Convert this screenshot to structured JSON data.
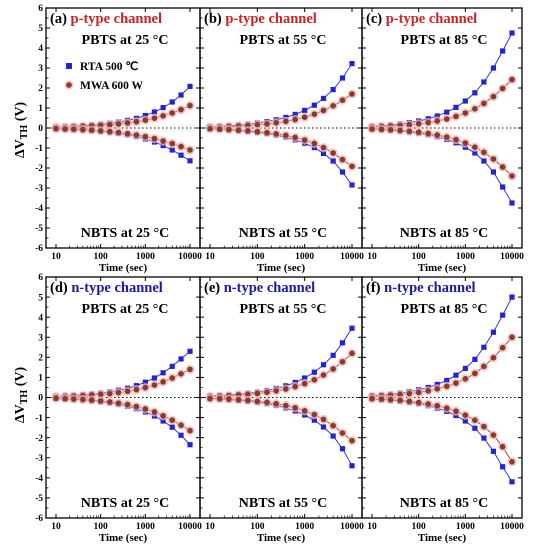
{
  "figure": {
    "y_axis_label": "ΔV",
    "y_axis_subscript": "TH",
    "y_axis_unit": " (V)"
  },
  "colors": {
    "rta": "#2323d6",
    "mwa": "#8b3a2a",
    "mwa_halo": "#f2b6b6",
    "p_channel": "#cc2222",
    "n_channel": "#1a1aa6"
  },
  "legend": {
    "rta_label": "RTA 500 ℃",
    "mwa_label": "MWA 600 W"
  },
  "chart_data": [
    {
      "type": "scatter",
      "panel": "(a)",
      "channel": "p-type channel",
      "top_label": "PBTS at 25 °C",
      "bottom_label": "NBTS at 25 °C",
      "xlabel": "Time (sec)",
      "x_scale": "log",
      "x_ticks": [
        "10",
        "100",
        "1000",
        "10000"
      ],
      "ylim": [
        -6,
        6
      ],
      "y_ticks": [
        6,
        5,
        4,
        3,
        2,
        1,
        0,
        -1,
        -2,
        -3,
        -4,
        -5,
        -6
      ],
      "x": [
        10,
        16,
        25,
        40,
        63,
        100,
        160,
        250,
        400,
        630,
        1000,
        1600,
        2500,
        4000,
        6300,
        10000
      ],
      "series": [
        {
          "name": "RTA 500 ℃",
          "stress": "PBTS",
          "values": [
            0.05,
            0.07,
            0.09,
            0.12,
            0.15,
            0.19,
            0.24,
            0.3,
            0.38,
            0.48,
            0.62,
            0.8,
            1.02,
            1.3,
            1.65,
            2.08
          ]
        },
        {
          "name": "MWA 600 W",
          "stress": "PBTS",
          "values": [
            0.03,
            0.04,
            0.06,
            0.08,
            0.1,
            0.13,
            0.16,
            0.2,
            0.25,
            0.31,
            0.39,
            0.49,
            0.61,
            0.75,
            0.92,
            1.12
          ]
        },
        {
          "name": "RTA 500 ℃",
          "stress": "NBTS",
          "values": [
            -0.04,
            -0.06,
            -0.08,
            -0.1,
            -0.13,
            -0.17,
            -0.21,
            -0.27,
            -0.34,
            -0.43,
            -0.55,
            -0.7,
            -0.88,
            -1.1,
            -1.36,
            -1.64
          ]
        },
        {
          "name": "MWA 600 W",
          "stress": "NBTS",
          "values": [
            -0.03,
            -0.05,
            -0.06,
            -0.08,
            -0.11,
            -0.14,
            -0.18,
            -0.22,
            -0.28,
            -0.35,
            -0.43,
            -0.53,
            -0.65,
            -0.78,
            -0.93,
            -1.1
          ]
        }
      ]
    },
    {
      "type": "scatter",
      "panel": "(b)",
      "channel": "p-type channel",
      "top_label": "PBTS at 55 °C",
      "bottom_label": "NBTS at 55 °C",
      "xlabel": "Time (sec)",
      "x_scale": "log",
      "x_ticks": [
        "10",
        "100",
        "1000",
        "10000"
      ],
      "ylim": [
        -6,
        6
      ],
      "x": [
        10,
        16,
        25,
        40,
        63,
        100,
        160,
        250,
        400,
        630,
        1000,
        1600,
        2500,
        4000,
        6300,
        10000
      ],
      "series": [
        {
          "name": "RTA 500 ℃",
          "stress": "PBTS",
          "values": [
            0.06,
            0.08,
            0.11,
            0.15,
            0.19,
            0.25,
            0.32,
            0.41,
            0.53,
            0.68,
            0.88,
            1.14,
            1.48,
            1.92,
            2.5,
            3.22
          ]
        },
        {
          "name": "MWA 600 W",
          "stress": "PBTS",
          "values": [
            0.04,
            0.05,
            0.07,
            0.09,
            0.12,
            0.16,
            0.2,
            0.26,
            0.33,
            0.42,
            0.54,
            0.69,
            0.88,
            1.11,
            1.39,
            1.7
          ]
        },
        {
          "name": "RTA 500 ℃",
          "stress": "NBTS",
          "values": [
            -0.05,
            -0.07,
            -0.1,
            -0.13,
            -0.17,
            -0.22,
            -0.28,
            -0.36,
            -0.46,
            -0.59,
            -0.76,
            -0.98,
            -1.27,
            -1.65,
            -2.2,
            -2.85
          ]
        },
        {
          "name": "MWA 600 W",
          "stress": "NBTS",
          "values": [
            -0.04,
            -0.06,
            -0.08,
            -0.11,
            -0.14,
            -0.18,
            -0.23,
            -0.29,
            -0.37,
            -0.47,
            -0.6,
            -0.77,
            -0.98,
            -1.25,
            -1.58,
            -1.92
          ]
        }
      ]
    },
    {
      "type": "scatter",
      "panel": "(c)",
      "channel": "p-type channel",
      "top_label": "PBTS at 85 °C",
      "bottom_label": "NBTS at 85 °C",
      "xlabel": "Time (sec)",
      "x_scale": "log",
      "x_ticks": [
        "10",
        "100",
        "1000",
        "10000"
      ],
      "ylim": [
        -6,
        6
      ],
      "x": [
        10,
        16,
        25,
        40,
        63,
        100,
        160,
        250,
        400,
        630,
        1000,
        1600,
        2500,
        4000,
        6300,
        10000
      ],
      "series": [
        {
          "name": "RTA 500 ℃",
          "stress": "PBTS",
          "values": [
            0.08,
            0.11,
            0.15,
            0.2,
            0.27,
            0.35,
            0.46,
            0.6,
            0.79,
            1.03,
            1.35,
            1.76,
            2.3,
            3.0,
            3.85,
            4.75
          ]
        },
        {
          "name": "MWA 600 W",
          "stress": "PBTS",
          "values": [
            0.05,
            0.07,
            0.09,
            0.12,
            0.16,
            0.21,
            0.27,
            0.35,
            0.45,
            0.58,
            0.75,
            0.96,
            1.23,
            1.57,
            1.98,
            2.42
          ]
        },
        {
          "name": "RTA 500 ℃",
          "stress": "NBTS",
          "values": [
            -0.06,
            -0.08,
            -0.11,
            -0.15,
            -0.2,
            -0.26,
            -0.34,
            -0.44,
            -0.57,
            -0.74,
            -0.96,
            -1.25,
            -1.65,
            -2.2,
            -2.95,
            -3.75
          ]
        },
        {
          "name": "MWA 600 W",
          "stress": "NBTS",
          "values": [
            -0.05,
            -0.07,
            -0.09,
            -0.12,
            -0.16,
            -0.21,
            -0.27,
            -0.35,
            -0.45,
            -0.58,
            -0.75,
            -0.96,
            -1.22,
            -1.55,
            -1.95,
            -2.4
          ]
        }
      ]
    },
    {
      "type": "scatter",
      "panel": "(d)",
      "channel": "n-type channel",
      "top_label": "PBTS at 25 °C",
      "bottom_label": "NBTS at 25 °C",
      "xlabel": "Time (sec)",
      "x_scale": "log",
      "x_ticks": [
        "10",
        "100",
        "1000",
        "10000"
      ],
      "ylim": [
        -6,
        6
      ],
      "x": [
        10,
        16,
        25,
        40,
        63,
        100,
        160,
        250,
        400,
        630,
        1000,
        1600,
        2500,
        4000,
        6300,
        10000
      ],
      "series": [
        {
          "name": "RTA 500 ℃",
          "stress": "PBTS",
          "values": [
            0.06,
            0.08,
            0.1,
            0.13,
            0.17,
            0.22,
            0.28,
            0.36,
            0.46,
            0.59,
            0.76,
            0.97,
            1.23,
            1.55,
            1.92,
            2.3
          ]
        },
        {
          "name": "MWA 600 W",
          "stress": "PBTS",
          "values": [
            0.04,
            0.05,
            0.07,
            0.09,
            0.12,
            0.15,
            0.19,
            0.24,
            0.31,
            0.39,
            0.49,
            0.62,
            0.78,
            0.97,
            1.18,
            1.4
          ]
        },
        {
          "name": "RTA 500 ℃",
          "stress": "NBTS",
          "values": [
            -0.05,
            -0.07,
            -0.09,
            -0.12,
            -0.16,
            -0.21,
            -0.27,
            -0.34,
            -0.44,
            -0.56,
            -0.72,
            -0.92,
            -1.17,
            -1.48,
            -1.88,
            -2.35
          ]
        },
        {
          "name": "MWA 600 W",
          "stress": "NBTS",
          "values": [
            -0.04,
            -0.06,
            -0.08,
            -0.1,
            -0.13,
            -0.17,
            -0.22,
            -0.28,
            -0.35,
            -0.45,
            -0.57,
            -0.72,
            -0.91,
            -1.13,
            -1.38,
            -1.65
          ]
        }
      ]
    },
    {
      "type": "scatter",
      "panel": "(e)",
      "channel": "n-type channel",
      "top_label": "PBTS at 55 °C",
      "bottom_label": "NBTS at 55 °C",
      "xlabel": "Time (sec)",
      "x_scale": "log",
      "x_ticks": [
        "10",
        "100",
        "1000",
        "10000"
      ],
      "ylim": [
        -6,
        6
      ],
      "x": [
        10,
        16,
        25,
        40,
        63,
        100,
        160,
        250,
        400,
        630,
        1000,
        1600,
        2500,
        4000,
        6300,
        10000
      ],
      "series": [
        {
          "name": "RTA 500 ℃",
          "stress": "PBTS",
          "values": [
            0.07,
            0.09,
            0.12,
            0.16,
            0.21,
            0.27,
            0.35,
            0.45,
            0.58,
            0.75,
            0.97,
            1.26,
            1.63,
            2.1,
            2.72,
            3.45
          ]
        },
        {
          "name": "MWA 600 W",
          "stress": "PBTS",
          "values": [
            0.05,
            0.07,
            0.09,
            0.12,
            0.15,
            0.2,
            0.26,
            0.33,
            0.42,
            0.54,
            0.69,
            0.88,
            1.12,
            1.42,
            1.78,
            2.2
          ]
        },
        {
          "name": "RTA 500 ℃",
          "stress": "NBTS",
          "values": [
            -0.06,
            -0.08,
            -0.11,
            -0.14,
            -0.19,
            -0.24,
            -0.31,
            -0.4,
            -0.52,
            -0.67,
            -0.87,
            -1.13,
            -1.47,
            -1.92,
            -2.55,
            -3.4
          ]
        },
        {
          "name": "MWA 600 W",
          "stress": "NBTS",
          "values": [
            -0.05,
            -0.06,
            -0.08,
            -0.11,
            -0.14,
            -0.19,
            -0.24,
            -0.31,
            -0.4,
            -0.51,
            -0.66,
            -0.85,
            -1.09,
            -1.4,
            -1.77,
            -2.15
          ]
        }
      ]
    },
    {
      "type": "scatter",
      "panel": "(f)",
      "channel": "n-type channel",
      "top_label": "PBTS at 85 °C",
      "bottom_label": "NBTS at 85 °C",
      "xlabel": "Time (sec)",
      "x_scale": "log",
      "x_ticks": [
        "10",
        "100",
        "1000",
        "10000"
      ],
      "ylim": [
        -6,
        6
      ],
      "x": [
        10,
        16,
        25,
        40,
        63,
        100,
        160,
        250,
        400,
        630,
        1000,
        1600,
        2500,
        4000,
        6300,
        10000
      ],
      "series": [
        {
          "name": "RTA 500 ℃",
          "stress": "PBTS",
          "values": [
            0.09,
            0.12,
            0.16,
            0.22,
            0.29,
            0.38,
            0.5,
            0.65,
            0.85,
            1.11,
            1.45,
            1.9,
            2.5,
            3.25,
            4.1,
            5.0
          ]
        },
        {
          "name": "MWA 600 W",
          "stress": "PBTS",
          "values": [
            0.06,
            0.08,
            0.11,
            0.14,
            0.19,
            0.25,
            0.33,
            0.43,
            0.56,
            0.72,
            0.93,
            1.2,
            1.55,
            1.98,
            2.48,
            3.0
          ]
        },
        {
          "name": "RTA 500 ℃",
          "stress": "NBTS",
          "values": [
            -0.07,
            -0.1,
            -0.13,
            -0.18,
            -0.24,
            -0.31,
            -0.41,
            -0.53,
            -0.69,
            -0.9,
            -1.17,
            -1.53,
            -2.02,
            -2.68,
            -3.45,
            -4.2
          ]
        },
        {
          "name": "MWA 600 W",
          "stress": "NBTS",
          "values": [
            -0.06,
            -0.08,
            -0.11,
            -0.14,
            -0.19,
            -0.25,
            -0.32,
            -0.41,
            -0.53,
            -0.68,
            -0.88,
            -1.13,
            -1.45,
            -1.87,
            -2.45,
            -3.2
          ]
        }
      ]
    }
  ]
}
